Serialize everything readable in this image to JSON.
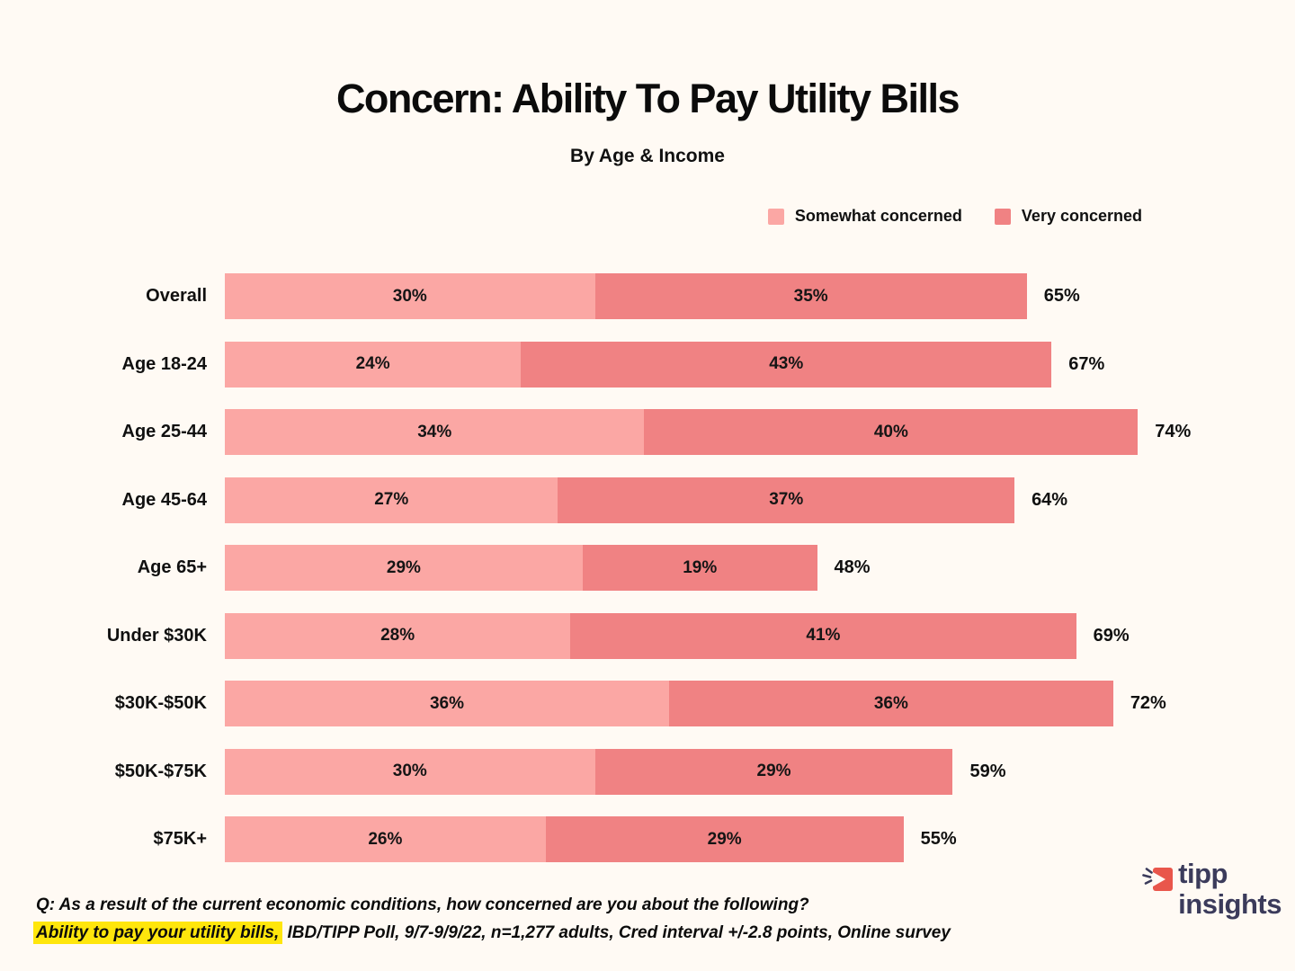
{
  "header": {
    "title": "Concern: Ability To Pay Utility Bills",
    "subtitle": "By Age & Income"
  },
  "legend": [
    {
      "label": "Somewhat concerned",
      "color": "#FBA7A4"
    },
    {
      "label": "Very concerned",
      "color": "#F08283"
    }
  ],
  "chart_data": {
    "type": "bar",
    "orientation": "horizontal",
    "stacked": true,
    "title": "Concern: Ability To Pay Utility Bills",
    "subtitle": "By Age & Income",
    "legend_position": "top-right",
    "categories": [
      "Overall",
      "Age 18-24",
      "Age 25-44",
      "Age 45-64",
      "Age 65+",
      "Under $30K",
      "$30K-$50K",
      "$50K-$75K",
      "$75K+"
    ],
    "series": [
      {
        "name": "Somewhat concerned",
        "color": "#FBA7A4",
        "values": [
          30,
          24,
          34,
          27,
          29,
          28,
          36,
          30,
          26
        ]
      },
      {
        "name": "Very concerned",
        "color": "#F08283",
        "values": [
          35,
          43,
          40,
          37,
          19,
          41,
          36,
          29,
          29
        ]
      }
    ],
    "totals": [
      65,
      67,
      74,
      64,
      48,
      69,
      72,
      59,
      55
    ],
    "value_suffix": "%",
    "xlim": [
      0,
      100
    ],
    "grid": false
  },
  "footer": {
    "line1": "Q: As a result of the current economic conditions, how concerned are you about the following?",
    "line2_highlight": "Ability to pay your utility bills,",
    "line2_rest": " IBD/TIPP Poll, 9/7-9/9/22, n=1,277 adults, Cred interval +/-2.8 points, Online survey",
    "highlight_color": "#FFE60C"
  },
  "logo": {
    "line1": "tipp",
    "line2": "insights",
    "text_color": "#3B3B5B",
    "icon_color": "#E9564B"
  }
}
